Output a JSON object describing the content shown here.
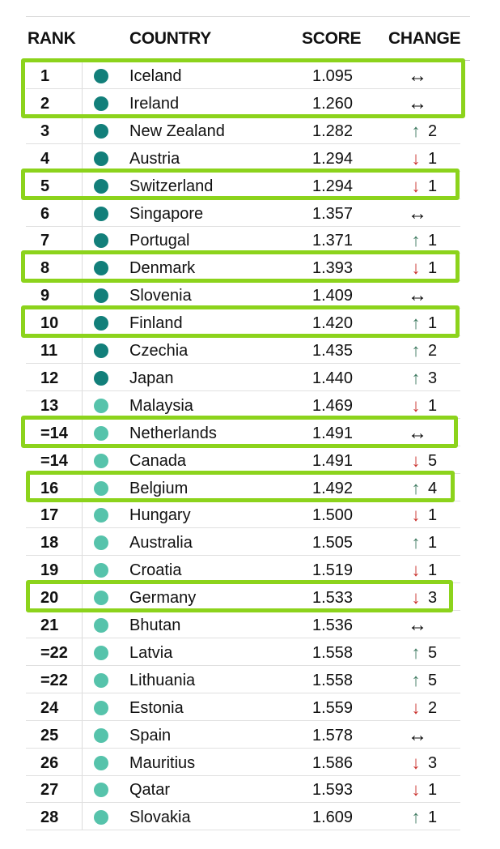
{
  "colors": {
    "dot_top_tier": "#127f7a",
    "dot_second_tier": "#56c3ab",
    "arrow_up": "#3f7a61",
    "arrow_down": "#c9302c",
    "highlight": "#8cd31c"
  },
  "chart_data": {
    "type": "table",
    "headers": {
      "rank": "RANK",
      "country": "COUNTRY",
      "score": "SCORE",
      "change": "CHANGE"
    },
    "rows": [
      {
        "rank": "1",
        "country": "Iceland",
        "score": "1.095",
        "direction": "same",
        "change": "",
        "tier": 1,
        "highlighted": true
      },
      {
        "rank": "2",
        "country": "Ireland",
        "score": "1.260",
        "direction": "same",
        "change": "",
        "tier": 1,
        "highlighted": true
      },
      {
        "rank": "3",
        "country": "New Zealand",
        "score": "1.282",
        "direction": "up",
        "change": "2",
        "tier": 1,
        "highlighted": false
      },
      {
        "rank": "4",
        "country": "Austria",
        "score": "1.294",
        "direction": "down",
        "change": "1",
        "tier": 1,
        "highlighted": false
      },
      {
        "rank": "5",
        "country": "Switzerland",
        "score": "1.294",
        "direction": "down",
        "change": "1",
        "tier": 1,
        "highlighted": true
      },
      {
        "rank": "6",
        "country": "Singapore",
        "score": "1.357",
        "direction": "same",
        "change": "",
        "tier": 1,
        "highlighted": false
      },
      {
        "rank": "7",
        "country": "Portugal",
        "score": "1.371",
        "direction": "up",
        "change": "1",
        "tier": 1,
        "highlighted": false
      },
      {
        "rank": "8",
        "country": "Denmark",
        "score": "1.393",
        "direction": "down",
        "change": "1",
        "tier": 1,
        "highlighted": true
      },
      {
        "rank": "9",
        "country": "Slovenia",
        "score": "1.409",
        "direction": "same",
        "change": "",
        "tier": 1,
        "highlighted": false
      },
      {
        "rank": "10",
        "country": "Finland",
        "score": "1.420",
        "direction": "up",
        "change": "1",
        "tier": 1,
        "highlighted": true
      },
      {
        "rank": "11",
        "country": "Czechia",
        "score": "1.435",
        "direction": "up",
        "change": "2",
        "tier": 1,
        "highlighted": false
      },
      {
        "rank": "12",
        "country": "Japan",
        "score": "1.440",
        "direction": "up",
        "change": "3",
        "tier": 1,
        "highlighted": false
      },
      {
        "rank": "13",
        "country": "Malaysia",
        "score": "1.469",
        "direction": "down",
        "change": "1",
        "tier": 2,
        "highlighted": false
      },
      {
        "rank": "=14",
        "country": "Netherlands",
        "score": "1.491",
        "direction": "same",
        "change": "",
        "tier": 2,
        "highlighted": true
      },
      {
        "rank": "=14",
        "country": "Canada",
        "score": "1.491",
        "direction": "down",
        "change": "5",
        "tier": 2,
        "highlighted": false
      },
      {
        "rank": "16",
        "country": "Belgium",
        "score": "1.492",
        "direction": "up",
        "change": "4",
        "tier": 2,
        "highlighted": true
      },
      {
        "rank": "17",
        "country": "Hungary",
        "score": "1.500",
        "direction": "down",
        "change": "1",
        "tier": 2,
        "highlighted": false
      },
      {
        "rank": "18",
        "country": "Australia",
        "score": "1.505",
        "direction": "up",
        "change": "1",
        "tier": 2,
        "highlighted": false
      },
      {
        "rank": "19",
        "country": "Croatia",
        "score": "1.519",
        "direction": "down",
        "change": "1",
        "tier": 2,
        "highlighted": false
      },
      {
        "rank": "20",
        "country": "Germany",
        "score": "1.533",
        "direction": "down",
        "change": "3",
        "tier": 2,
        "highlighted": true
      },
      {
        "rank": "21",
        "country": "Bhutan",
        "score": "1.536",
        "direction": "same",
        "change": "",
        "tier": 2,
        "highlighted": false
      },
      {
        "rank": "=22",
        "country": "Latvia",
        "score": "1.558",
        "direction": "up",
        "change": "5",
        "tier": 2,
        "highlighted": false
      },
      {
        "rank": "=22",
        "country": "Lithuania",
        "score": "1.558",
        "direction": "up",
        "change": "5",
        "tier": 2,
        "highlighted": false
      },
      {
        "rank": "24",
        "country": "Estonia",
        "score": "1.559",
        "direction": "down",
        "change": "2",
        "tier": 2,
        "highlighted": false
      },
      {
        "rank": "25",
        "country": "Spain",
        "score": "1.578",
        "direction": "same",
        "change": "",
        "tier": 2,
        "highlighted": false
      },
      {
        "rank": "26",
        "country": "Mauritius",
        "score": "1.586",
        "direction": "down",
        "change": "3",
        "tier": 2,
        "highlighted": false
      },
      {
        "rank": "27",
        "country": "Qatar",
        "score": "1.593",
        "direction": "down",
        "change": "1",
        "tier": 2,
        "highlighted": false
      },
      {
        "rank": "28",
        "country": "Slovakia",
        "score": "1.609",
        "direction": "up",
        "change": "1",
        "tier": 2,
        "highlighted": false
      }
    ]
  }
}
